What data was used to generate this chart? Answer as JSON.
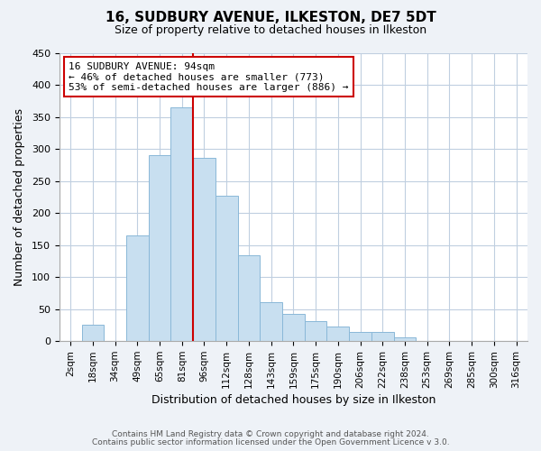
{
  "title": "16, SUDBURY AVENUE, ILKESTON, DE7 5DT",
  "subtitle": "Size of property relative to detached houses in Ilkeston",
  "xlabel": "Distribution of detached houses by size in Ilkeston",
  "ylabel": "Number of detached properties",
  "bar_labels": [
    "2sqm",
    "18sqm",
    "34sqm",
    "49sqm",
    "65sqm",
    "81sqm",
    "96sqm",
    "112sqm",
    "128sqm",
    "143sqm",
    "159sqm",
    "175sqm",
    "190sqm",
    "206sqm",
    "222sqm",
    "238sqm",
    "253sqm",
    "269sqm",
    "285sqm",
    "300sqm",
    "316sqm"
  ],
  "bar_values": [
    0,
    26,
    0,
    165,
    291,
    365,
    286,
    227,
    134,
    61,
    43,
    31,
    23,
    14,
    14,
    6,
    0,
    0,
    0,
    0,
    0
  ],
  "bar_color": "#c8dff0",
  "bar_edge_color": "#8ab8d8",
  "vline_x_index": 6,
  "vline_color": "#cc0000",
  "annotation_title": "16 SUDBURY AVENUE: 94sqm",
  "annotation_line1": "← 46% of detached houses are smaller (773)",
  "annotation_line2": "53% of semi-detached houses are larger (886) →",
  "annotation_box_color": "#ffffff",
  "annotation_box_edge": "#cc0000",
  "ylim": [
    0,
    450
  ],
  "yticks": [
    0,
    50,
    100,
    150,
    200,
    250,
    300,
    350,
    400,
    450
  ],
  "footer_line1": "Contains HM Land Registry data © Crown copyright and database right 2024.",
  "footer_line2": "Contains public sector information licensed under the Open Government Licence v 3.0.",
  "bg_color": "#eef2f7",
  "plot_bg_color": "#ffffff",
  "grid_color": "#c0cfe0"
}
